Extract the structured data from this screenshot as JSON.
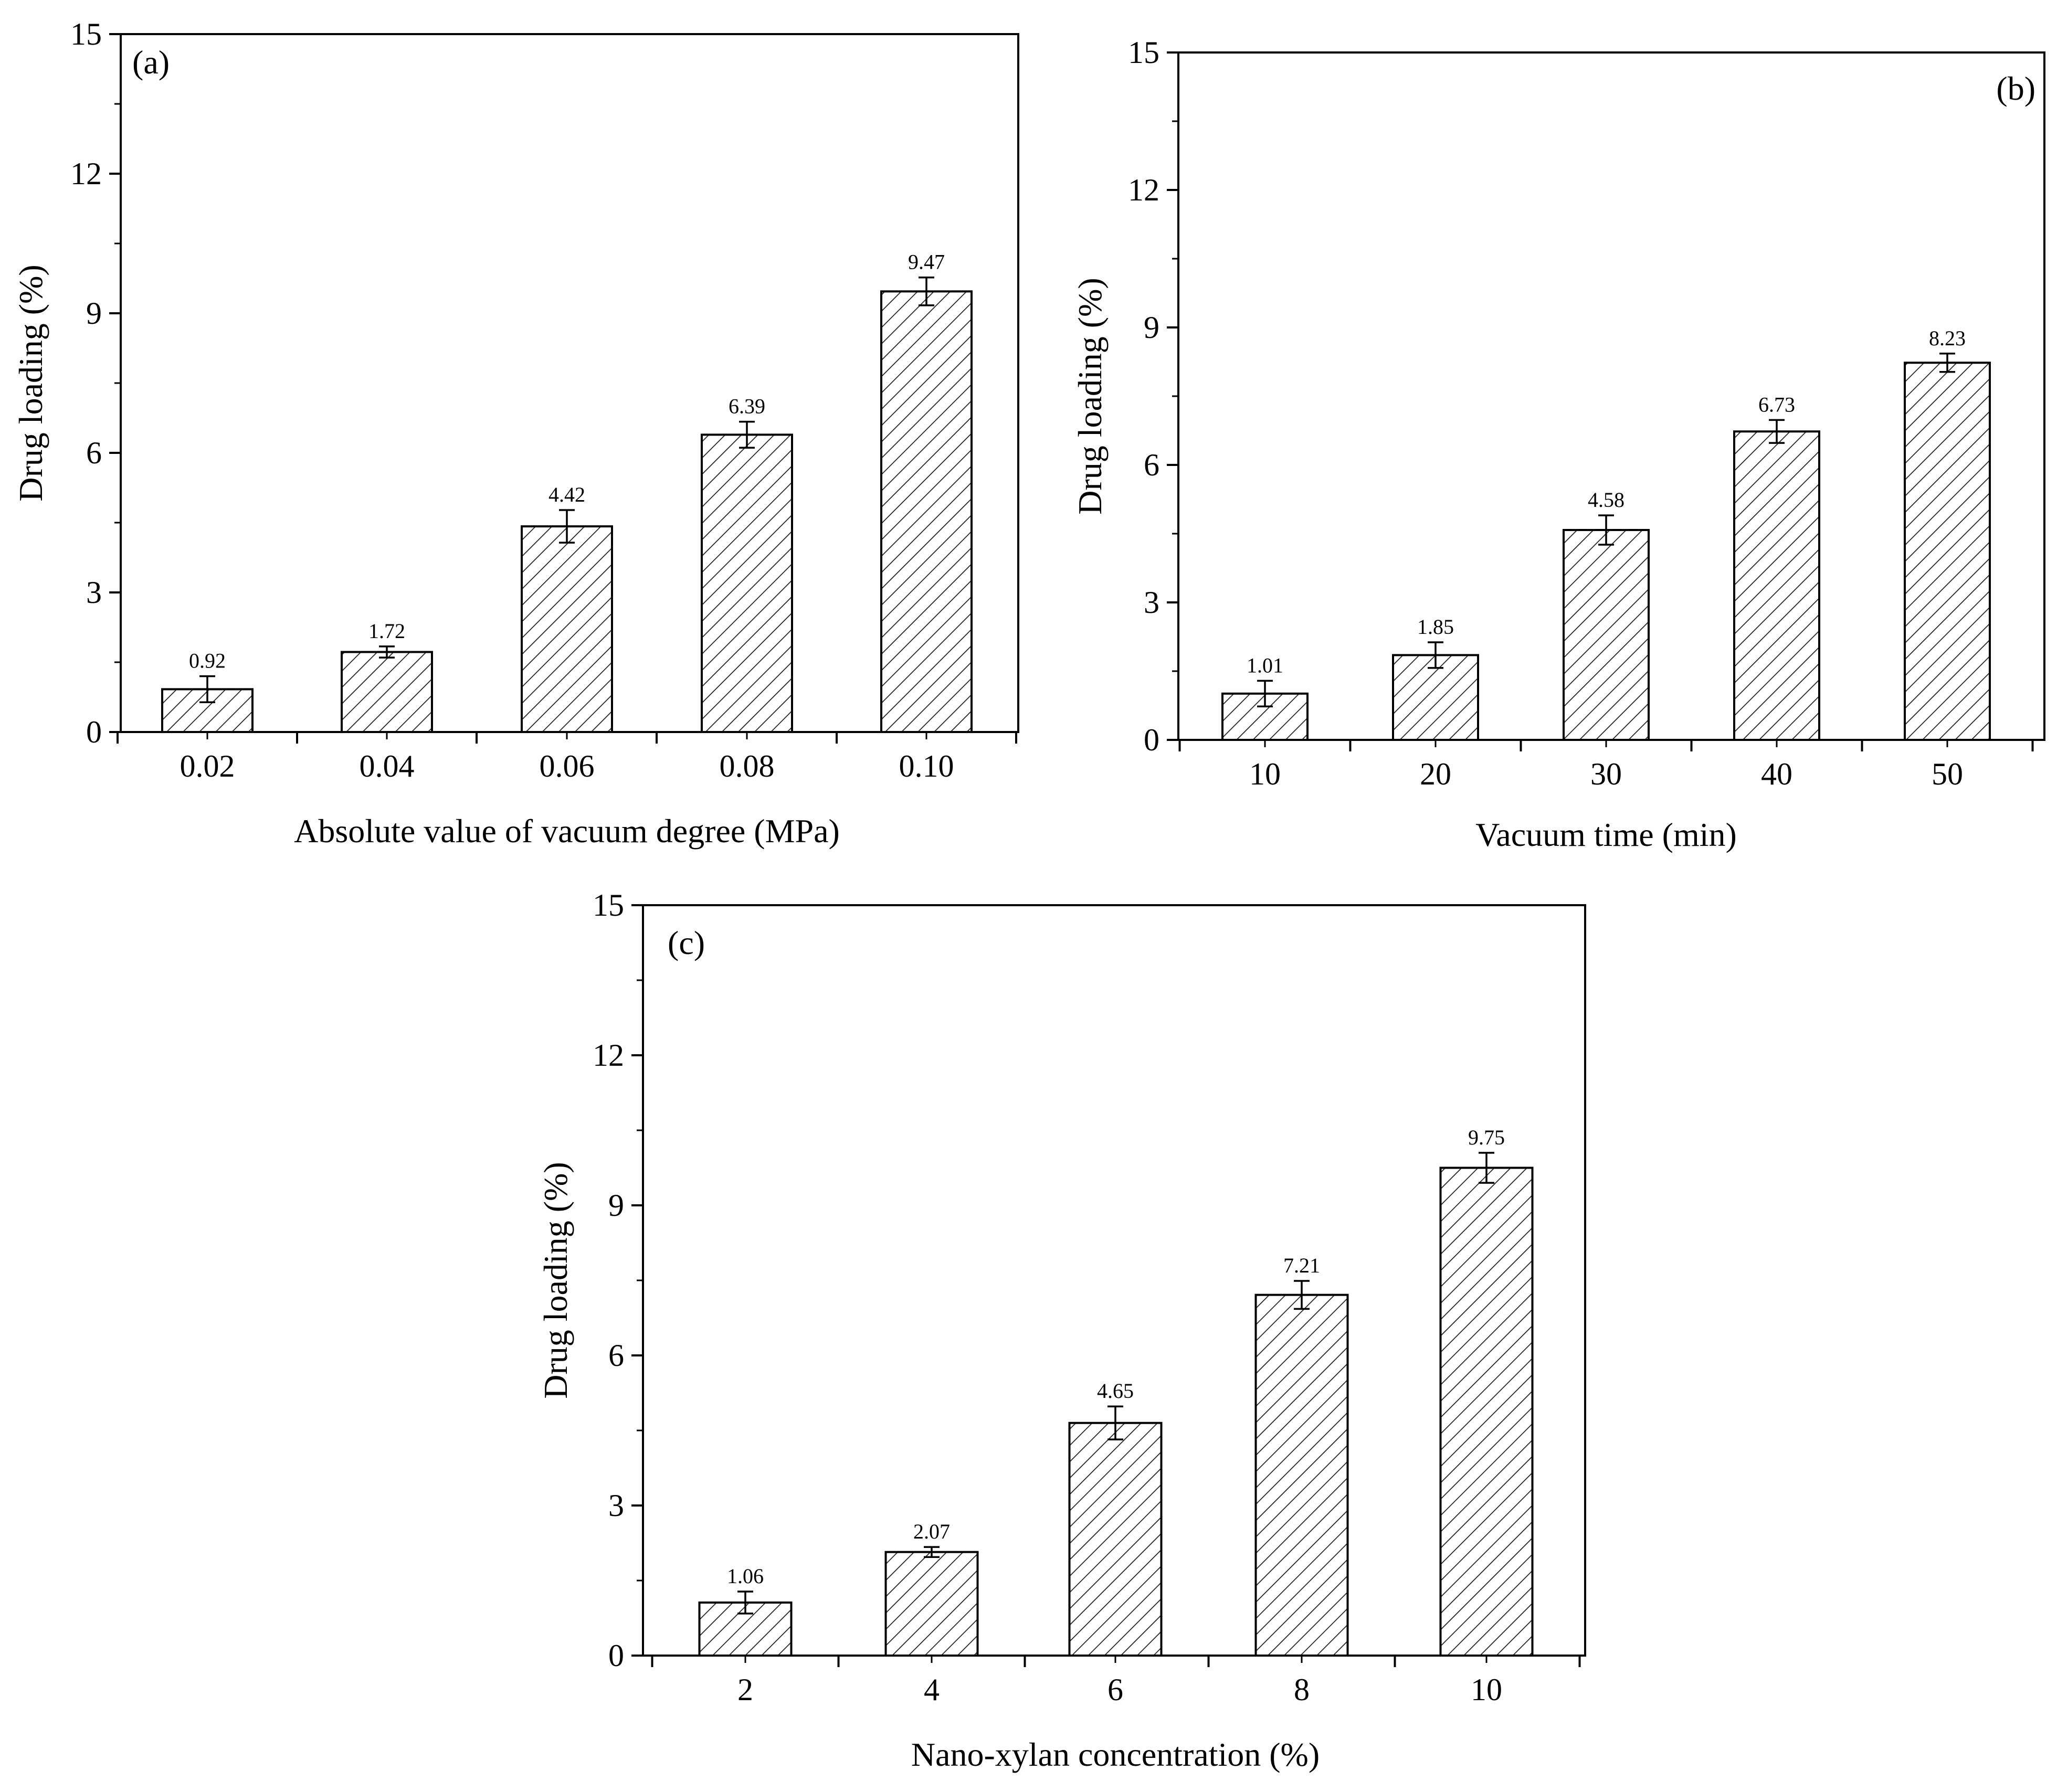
{
  "chart_data": [
    {
      "type": "bar",
      "panel_label": "(a)",
      "categories": [
        "0.02",
        "0.04",
        "0.06",
        "0.08",
        "0.10"
      ],
      "values": [
        0.92,
        1.72,
        4.42,
        6.39,
        9.47
      ],
      "value_labels": [
        "0.92",
        "1.72",
        "4.42",
        "6.39",
        "9.47"
      ],
      "errors": [
        0.28,
        0.12,
        0.35,
        0.28,
        0.3
      ],
      "title": "",
      "xlabel": "Absolute value of vacuum degree (MPa)",
      "ylabel": "Drug loading (%)",
      "ylim": [
        0,
        15
      ],
      "yticks": [
        0,
        3,
        6,
        9,
        12,
        15
      ],
      "ytick_labels": [
        "0",
        "3",
        "6",
        "9",
        "12",
        "15"
      ],
      "pattern": "diagonal-hatch",
      "grid": false
    },
    {
      "type": "bar",
      "panel_label": "(b)",
      "categories": [
        "10",
        "20",
        "30",
        "40",
        "50"
      ],
      "values": [
        1.01,
        1.85,
        4.58,
        6.73,
        8.23
      ],
      "value_labels": [
        "1.01",
        "1.85",
        "4.58",
        "6.73",
        "8.23"
      ],
      "errors": [
        0.28,
        0.28,
        0.32,
        0.25,
        0.2
      ],
      "title": "",
      "xlabel": "Vacuum time (min)",
      "ylabel": "Drug loading (%)",
      "ylim": [
        0,
        15
      ],
      "yticks": [
        0,
        3,
        6,
        9,
        12,
        15
      ],
      "ytick_labels": [
        "0",
        "3",
        "6",
        "9",
        "12",
        "15"
      ],
      "pattern": "diagonal-hatch",
      "grid": false
    },
    {
      "type": "bar",
      "panel_label": "(c)",
      "categories": [
        "2",
        "4",
        "6",
        "8",
        "10"
      ],
      "values": [
        1.06,
        2.07,
        4.65,
        7.21,
        9.75
      ],
      "value_labels": [
        "1.06",
        "2.07",
        "4.65",
        "7.21",
        "9.75"
      ],
      "errors": [
        0.22,
        0.1,
        0.33,
        0.28,
        0.3
      ],
      "title": "",
      "xlabel": "Nano-xylan concentration (%)",
      "ylabel": "Drug loading (%)",
      "ylim": [
        0,
        15
      ],
      "yticks": [
        0,
        3,
        6,
        9,
        12,
        15
      ],
      "ytick_labels": [
        "0",
        "3",
        "6",
        "9",
        "12",
        "15"
      ],
      "pattern": "diagonal-hatch",
      "grid": false
    }
  ]
}
